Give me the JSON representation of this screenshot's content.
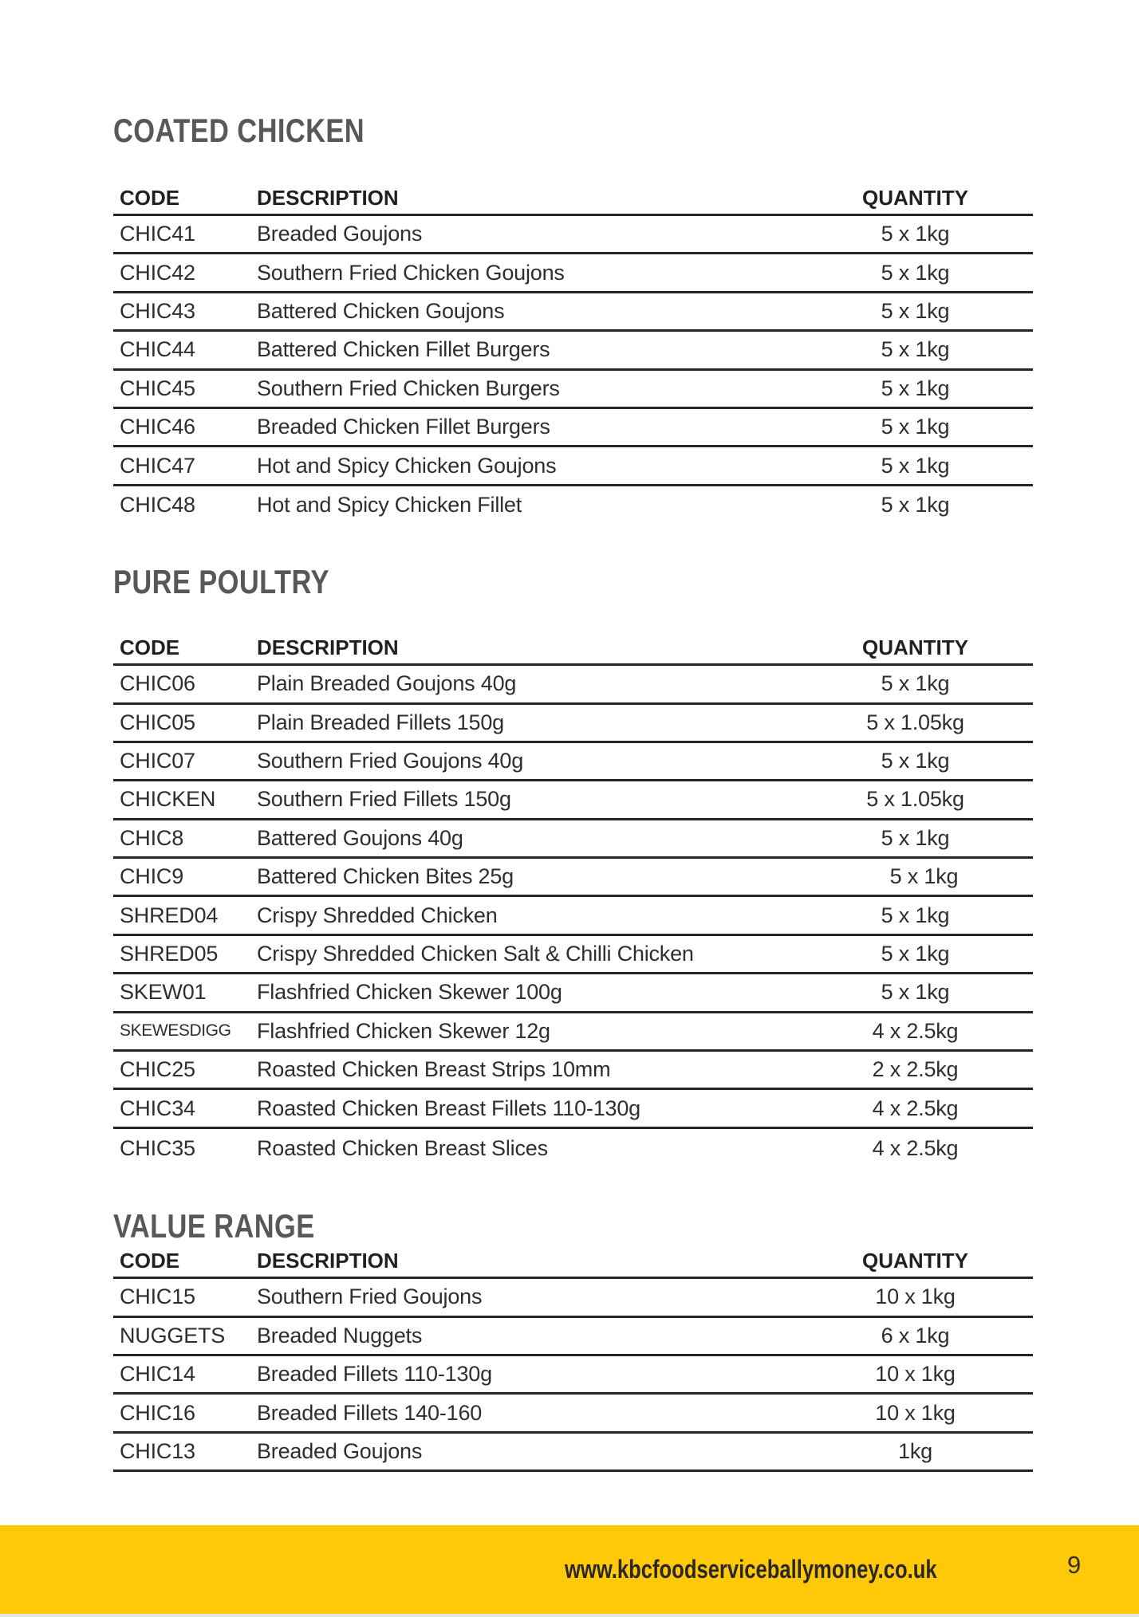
{
  "colors": {
    "footer_yellow": "#ffc907",
    "heading_gray": "#58585a",
    "rule_color": "#272324",
    "body_text": "#312d2e",
    "header_text": "#231f20"
  },
  "sections": [
    {
      "heading": "COATED CHICKEN",
      "columns": {
        "code": "CODE",
        "description": "DESCRIPTION",
        "quantity": "QUANTITY"
      },
      "last_row_border": false,
      "rows": [
        {
          "code": "CHIC41",
          "description": "Breaded Goujons",
          "quantity": "5 x 1kg"
        },
        {
          "code": "CHIC42",
          "description": "Southern Fried Chicken Goujons",
          "quantity": "5 x 1kg"
        },
        {
          "code": "CHIC43",
          "description": "Battered Chicken Goujons",
          "quantity": "5 x 1kg"
        },
        {
          "code": "CHIC44",
          "description": "Battered Chicken Fillet Burgers",
          "quantity": "5 x 1kg"
        },
        {
          "code": "CHIC45",
          "description": "Southern Fried Chicken Burgers",
          "quantity": "5 x 1kg"
        },
        {
          "code": "CHIC46",
          "description": "Breaded Chicken Fillet Burgers",
          "quantity": "5 x 1kg"
        },
        {
          "code": "CHIC47",
          "description": "Hot and Spicy Chicken Goujons",
          "quantity": "5 x 1kg"
        },
        {
          "code": "CHIC48",
          "description": "Hot and Spicy Chicken Fillet",
          "quantity": "5 x 1kg"
        }
      ]
    },
    {
      "heading": "PURE POULTRY",
      "columns": {
        "code": "CODE",
        "description": "DESCRIPTION",
        "quantity": "QUANTITY"
      },
      "last_row_border": false,
      "rows": [
        {
          "code": "CHIC06",
          "description": "Plain Breaded Goujons 40g",
          "quantity": "5 x 1kg"
        },
        {
          "code": "CHIC05",
          "description": "Plain Breaded Fillets 150g",
          "quantity": "5 x 1.05kg"
        },
        {
          "code": "CHIC07",
          "description": "Southern Fried Goujons 40g",
          "quantity": "5 x 1kg"
        },
        {
          "code": "CHICKEN",
          "description": "Southern Fried Fillets 150g",
          "quantity": "5 x 1.05kg"
        },
        {
          "code": "CHIC8",
          "description": "Battered Goujons 40g",
          "quantity": "5 x 1kg"
        },
        {
          "code": "CHIC9",
          "description": "Battered Chicken Bites 25g",
          "quantity": "5 x 1kg",
          "qty_indent": true
        },
        {
          "code": "SHRED04",
          "description": "Crispy Shredded Chicken",
          "quantity": "5 x 1kg"
        },
        {
          "code": "SHRED05",
          "description": "Crispy Shredded Chicken Salt & Chilli Chicken",
          "quantity": "5 x 1kg"
        },
        {
          "code": "SKEW01",
          "description": "Flashfried Chicken Skewer 100g",
          "quantity": "5 x 1kg"
        },
        {
          "code": "SKEWESDIGG",
          "description": "Flashfried Chicken Skewer 12g",
          "quantity": "4 x 2.5kg",
          "code_small": true
        },
        {
          "code": "CHIC25",
          "description": "Roasted Chicken Breast Strips 10mm",
          "quantity": "2 x 2.5kg"
        },
        {
          "code": "CHIC34",
          "description": "Roasted Chicken Breast Fillets 110-130g",
          "quantity": "4 x 2.5kg"
        },
        {
          "code": "CHIC35",
          "description": "Roasted Chicken Breast Slices",
          "quantity": "4 x 2.5kg"
        }
      ]
    },
    {
      "heading": "VALUE RANGE",
      "columns": {
        "code": "CODE",
        "description": "DESCRIPTION",
        "quantity": "QUANTITY"
      },
      "last_row_border": true,
      "tight": true,
      "rows": [
        {
          "code": "CHIC15",
          "description": "Southern Fried Goujons",
          "quantity": "10 x 1kg"
        },
        {
          "code": "NUGGETS",
          "description": "Breaded Nuggets",
          "quantity": "6 x 1kg"
        },
        {
          "code": "CHIC14",
          "description": "Breaded Fillets 110-130g",
          "quantity": "10 x 1kg"
        },
        {
          "code": "CHIC16",
          "description": "Breaded Fillets 140-160",
          "quantity": "10 x 1kg"
        },
        {
          "code": "CHIC13",
          "description": "Breaded Goujons",
          "quantity": "1kg"
        }
      ]
    }
  ],
  "footer": {
    "website": "www.kbcfoodserviceballymoney.co.uk",
    "page_number": "9"
  }
}
